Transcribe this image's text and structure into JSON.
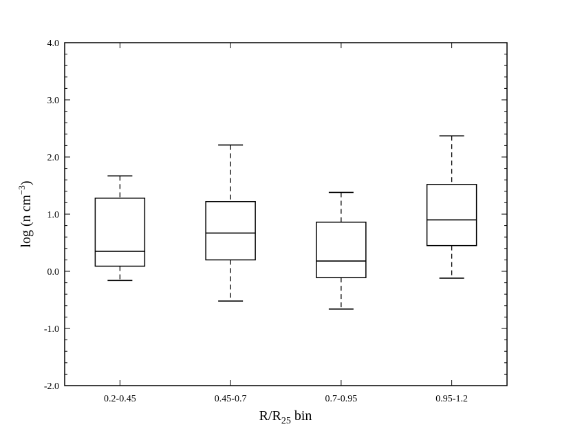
{
  "chart_data": {
    "type": "box",
    "xlabel": "R/R25 bin",
    "xlabel_parts": {
      "main": "R/R",
      "subscript": "25",
      "suffix": " bin"
    },
    "ylabel": "log (n cm^-3)",
    "ylabel_parts": {
      "main": "log (n cm",
      "superscript": "−3",
      "suffix": ")"
    },
    "ylim": [
      -2.0,
      4.0
    ],
    "yticks": [
      -2.0,
      -1.0,
      0.0,
      1.0,
      2.0,
      3.0,
      4.0
    ],
    "ytick_labels": [
      "-2.0",
      "-1.0",
      "0.0",
      "1.0",
      "2.0",
      "3.0",
      "4.0"
    ],
    "categories": [
      "0.2-0.45",
      "0.45-0.7",
      "0.7-0.95",
      "0.95-1.2"
    ],
    "boxes": [
      {
        "category": "0.2-0.45",
        "whisker_low": -0.16,
        "q1": 0.09,
        "median": 0.35,
        "q3": 1.28,
        "whisker_high": 1.67
      },
      {
        "category": "0.45-0.7",
        "whisker_low": -0.52,
        "q1": 0.2,
        "median": 0.67,
        "q3": 1.22,
        "whisker_high": 2.21
      },
      {
        "category": "0.7-0.95",
        "whisker_low": -0.66,
        "q1": -0.11,
        "median": 0.18,
        "q3": 0.86,
        "whisker_high": 1.38
      },
      {
        "category": "0.95-1.2",
        "whisker_low": -0.12,
        "q1": 0.45,
        "median": 0.9,
        "q3": 1.52,
        "whisker_high": 2.37
      }
    ],
    "grid": false,
    "minor_ticks": true
  }
}
